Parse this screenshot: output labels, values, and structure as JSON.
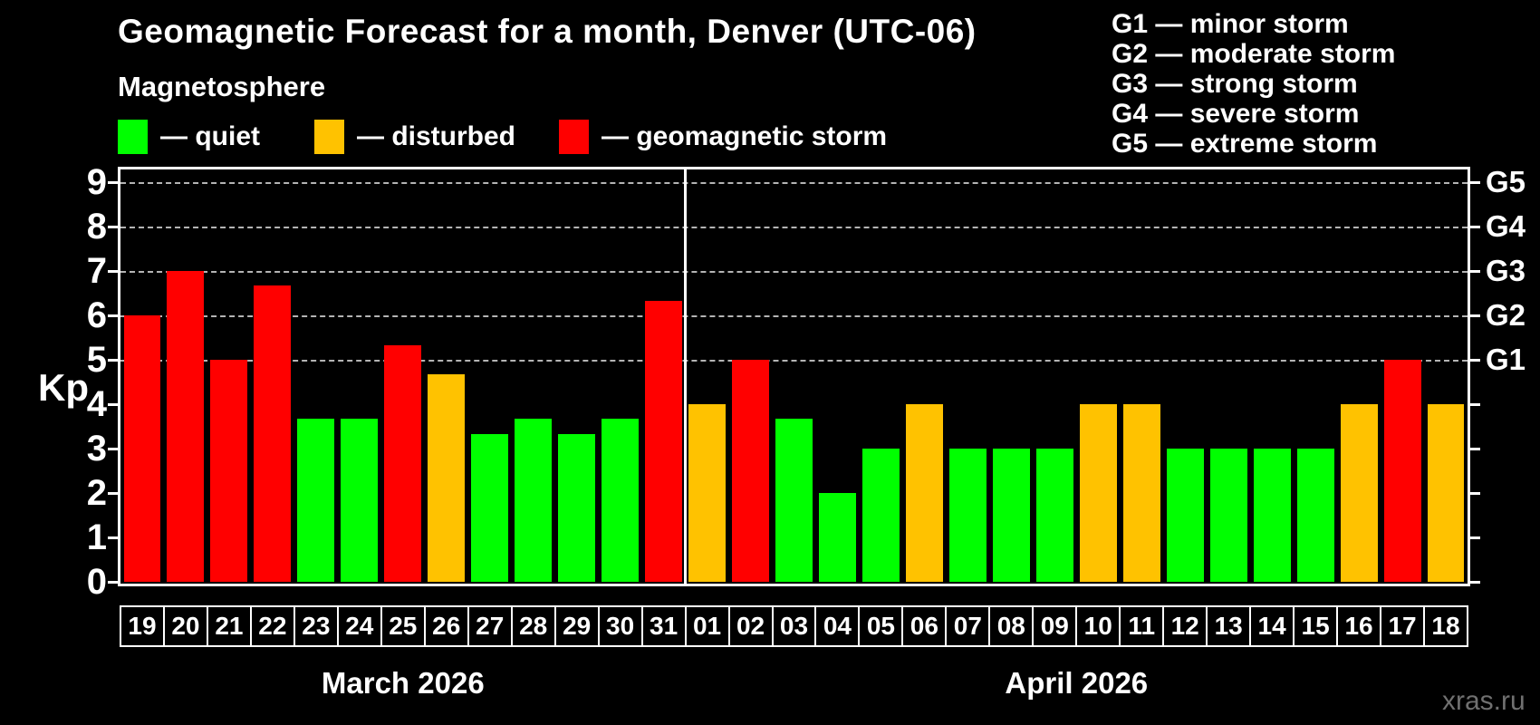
{
  "title": "Geomagnetic Forecast for a month, Denver (UTC-06)",
  "subtitle": "Magnetosphere",
  "legend": {
    "items": [
      {
        "id": "quiet",
        "label": "— quiet",
        "color": "#00ff00"
      },
      {
        "id": "disturbed",
        "label": "— disturbed",
        "color": "#ffc200"
      },
      {
        "id": "storm",
        "label": "— geomagnetic storm",
        "color": "#ff0000"
      }
    ]
  },
  "g_legend": {
    "items": [
      "G1 — minor storm",
      "G2 — moderate storm",
      "G3 — strong storm",
      "G4 — severe storm",
      "G5 — extreme storm"
    ]
  },
  "watermark": "xras.ru",
  "chart_data": {
    "type": "bar",
    "title": "Geomagnetic Forecast for a month, Denver (UTC-06)",
    "ylabel": "Kp",
    "ylim": [
      0,
      9.4
    ],
    "yticks": [
      0,
      1,
      2,
      3,
      4,
      5,
      6,
      7,
      8,
      9
    ],
    "grid": "dashed-at-storm-levels",
    "right_axis_levels": [
      {
        "kp": 5,
        "label": "G1"
      },
      {
        "kp": 6,
        "label": "G2"
      },
      {
        "kp": 7,
        "label": "G3"
      },
      {
        "kp": 8,
        "label": "G4"
      },
      {
        "kp": 9,
        "label": "G5"
      }
    ],
    "color_map": {
      "quiet": "#00ff00",
      "disturbed": "#ffc200",
      "storm": "#ff0000"
    },
    "groups": [
      {
        "month": "March 2026",
        "days": [
          "19",
          "20",
          "21",
          "22",
          "23",
          "24",
          "25",
          "26",
          "27",
          "28",
          "29",
          "30",
          "31"
        ],
        "values": [
          6,
          7,
          5,
          6.67,
          3.67,
          3.67,
          5.33,
          4.67,
          3.33,
          3.67,
          3.33,
          3.67,
          6.33
        ],
        "states": [
          "storm",
          "storm",
          "storm",
          "storm",
          "quiet",
          "quiet",
          "storm",
          "disturbed",
          "quiet",
          "quiet",
          "quiet",
          "quiet",
          "storm"
        ]
      },
      {
        "month": "April 2026",
        "days": [
          "01",
          "02",
          "03",
          "04",
          "05",
          "06",
          "07",
          "08",
          "09",
          "10",
          "11",
          "12",
          "13",
          "14",
          "15",
          "16",
          "17",
          "18"
        ],
        "values": [
          4,
          5,
          3.67,
          2,
          3,
          4,
          3,
          3,
          3,
          4,
          4,
          3,
          3,
          3,
          3,
          4,
          5,
          4
        ],
        "states": [
          "disturbed",
          "storm",
          "quiet",
          "quiet",
          "quiet",
          "disturbed",
          "quiet",
          "quiet",
          "quiet",
          "disturbed",
          "disturbed",
          "quiet",
          "quiet",
          "quiet",
          "quiet",
          "disturbed",
          "storm",
          "disturbed"
        ]
      }
    ]
  }
}
